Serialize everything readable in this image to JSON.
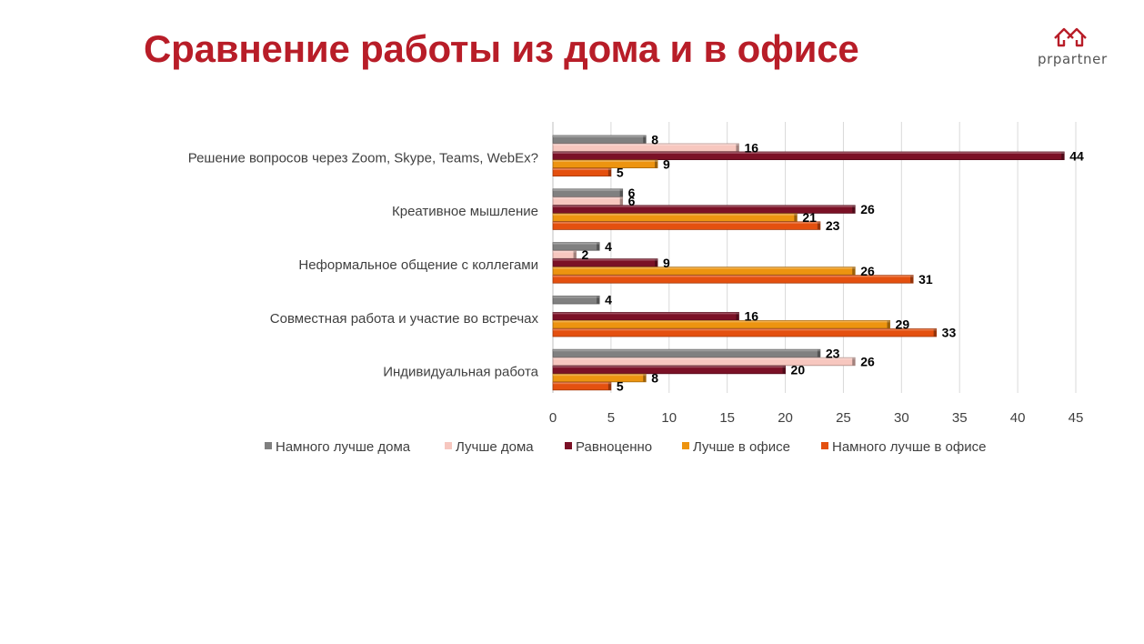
{
  "title": "Сравнение работы из дома и в офисе",
  "logo": {
    "text": "prpartner",
    "icon": "house-logo-icon",
    "color": "#b81d28"
  },
  "chart_data": {
    "type": "bar",
    "orientation": "horizontal",
    "categories": [
      "Решение вопросов через Zoom, Skype, Teams, WebEx?",
      "Креативное мышление",
      "Неформальное общение с коллегами",
      "Совместная работа и участие во встречах",
      "Индивидуальная работа"
    ],
    "series": [
      {
        "name": "Намного лучше дома",
        "color": "#808080",
        "values": [
          8,
          6,
          4,
          4,
          23
        ]
      },
      {
        "name": "Лучше дома",
        "color": "#f7c7bf",
        "values": [
          16,
          6,
          2,
          null,
          26
        ]
      },
      {
        "name": "Равноценно",
        "color": "#7b1126",
        "values": [
          44,
          26,
          9,
          16,
          20
        ]
      },
      {
        "name": "Лучше в офисе",
        "color": "#ed9410",
        "values": [
          9,
          21,
          26,
          29,
          8
        ]
      },
      {
        "name": "Намного лучше в офисе",
        "color": "#e4500f",
        "values": [
          5,
          23,
          31,
          33,
          5
        ]
      }
    ],
    "xlim": [
      0,
      45
    ],
    "xticks": [
      0,
      5,
      10,
      15,
      20,
      25,
      30,
      35,
      40,
      45
    ],
    "grid": true,
    "legend_position": "bottom",
    "data_labels": true
  }
}
